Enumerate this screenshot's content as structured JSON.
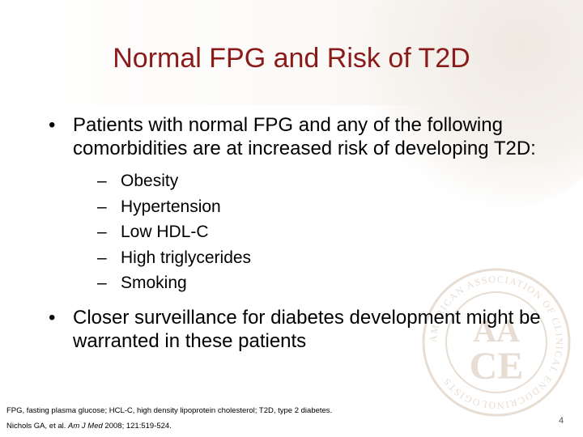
{
  "slide": {
    "title": "Normal FPG and Risk of T2D",
    "bullets": [
      {
        "text": "Patients with normal FPG and any of the following comorbidities are at increased risk of developing T2D:",
        "subitems": [
          "Obesity",
          "Hypertension",
          "Low HDL-C",
          "High triglycerides",
          "Smoking"
        ]
      },
      {
        "text": "Closer surveillance for diabetes development might be warranted in these patients",
        "subitems": []
      }
    ],
    "bullet_symbol": "•",
    "dash_symbol": "–",
    "footnote": "FPG, fasting plasma glucose; HCL-C, high density lipoprotein cholesterol; T2D, type 2 diabetes.",
    "citation": {
      "authors": "Nichols GA, et al. ",
      "journal": "Am J Med",
      "details": " 2008; 121:519-524."
    },
    "page_number": "4",
    "seal": {
      "monogram_top": "AA",
      "monogram_bottom": "CE",
      "ring_text": "AMERICAN ASSOCIATION OF CLINICAL ENDOCRINOLOGISTS"
    },
    "colors": {
      "title": "#8b1a1a",
      "seal": "#e7ddd3",
      "background_accent": "#f3eee8"
    }
  }
}
